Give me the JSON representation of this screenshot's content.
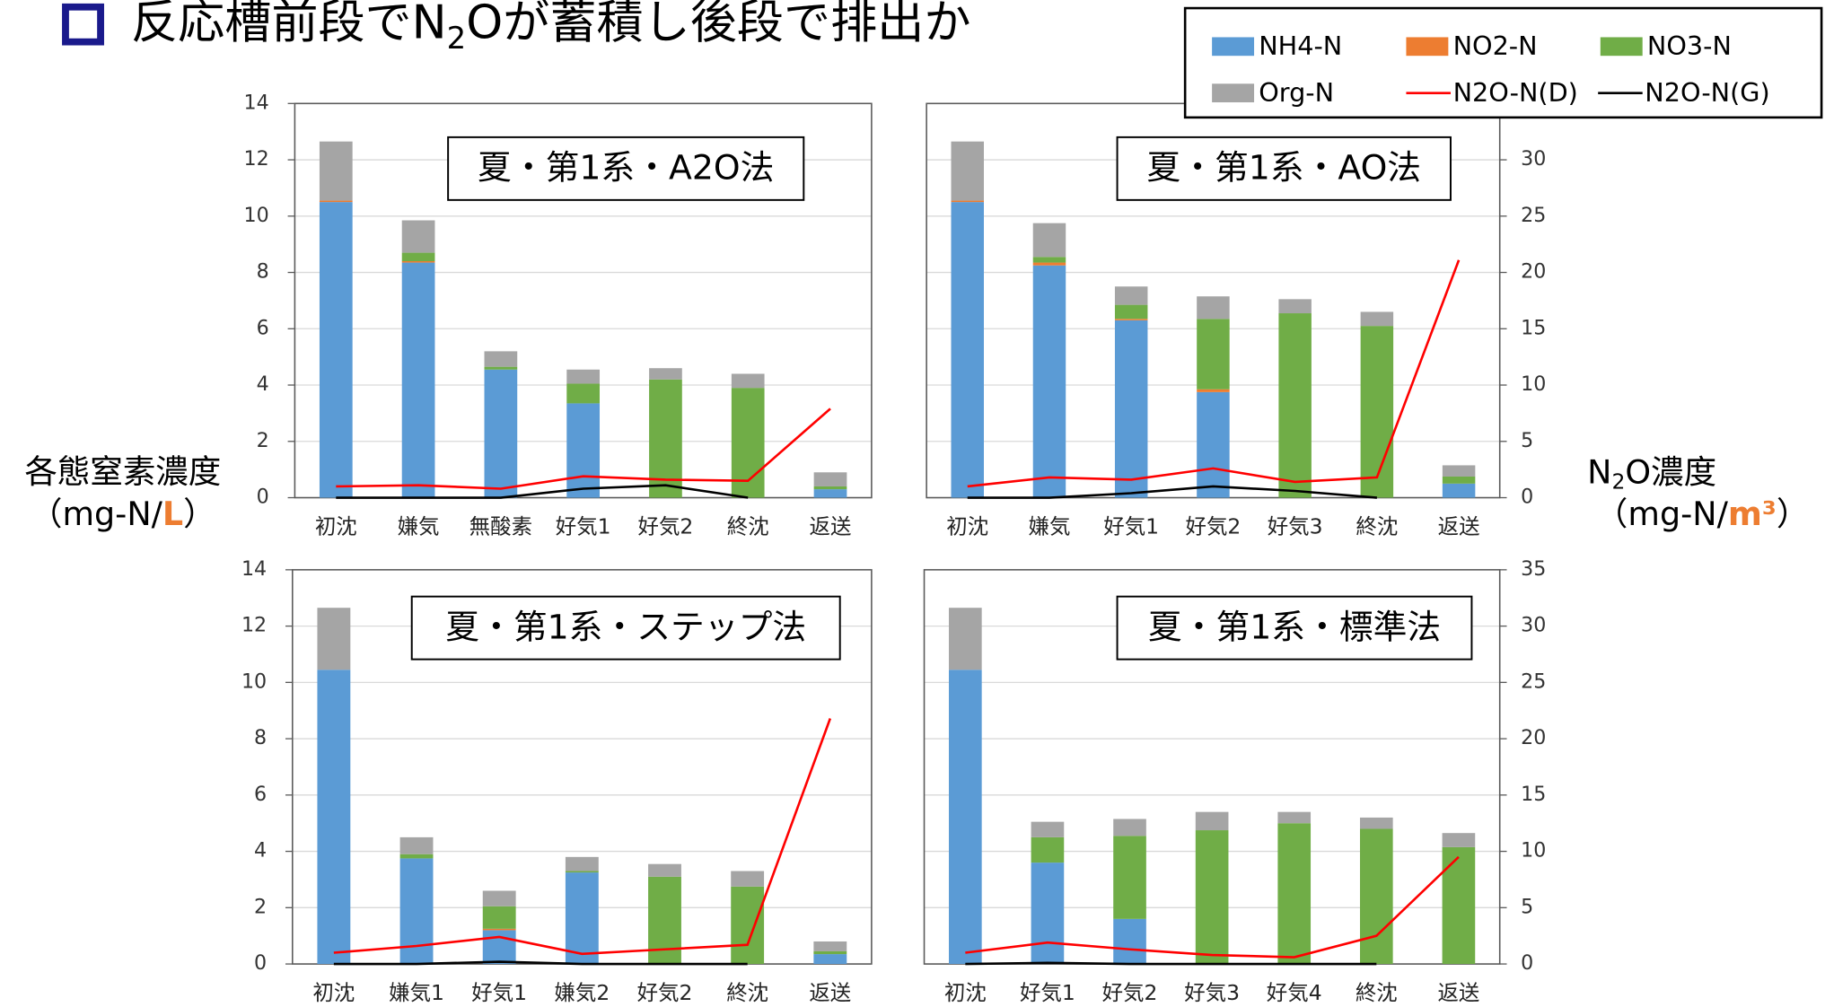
{
  "title": [
    "反応槽前段でN",
    "2",
    "Oが蓄積し後段で排出か"
  ],
  "y_label": [
    "各態窒素濃度",
    "（mg-N/",
    "L",
    "）"
  ],
  "y2_label": [
    "N",
    "2",
    "O濃度",
    "（mg-N/",
    "m³",
    "）"
  ],
  "chart_data": [
    {
      "type": "bar",
      "stacked": true,
      "label": "夏・第1系・A2O法",
      "categories": [
        "初沈",
        "嫌気",
        "無酸素",
        "好気1",
        "好気2",
        "終沈",
        "返送"
      ],
      "series": [
        {
          "name": "NH4-N",
          "type": "bar",
          "color": "#5b9bd5",
          "values": [
            10.5,
            8.35,
            4.55,
            3.35,
            0,
            0,
            0.3
          ]
        },
        {
          "name": "NO2-N",
          "type": "bar",
          "color": "#ed7d31",
          "values": [
            0.05,
            0.05,
            0,
            0,
            0,
            0,
            0
          ]
        },
        {
          "name": "NO3-N",
          "type": "bar",
          "color": "#70ad47",
          "values": [
            0,
            0.3,
            0.1,
            0.7,
            4.2,
            3.9,
            0.1
          ]
        },
        {
          "name": "Org-N",
          "type": "bar",
          "color": "#a5a5a5",
          "values": [
            2.1,
            1.15,
            0.55,
            0.5,
            0.4,
            0.5,
            0.5
          ]
        },
        {
          "name": "N2O-N(D)",
          "type": "line",
          "axis": "y2",
          "color": "#ff0000",
          "values": [
            1.0,
            1.1,
            0.8,
            1.9,
            1.6,
            1.5,
            7.9
          ]
        },
        {
          "name": "N2O-N(G)",
          "type": "line",
          "axis": "y2",
          "color": "#000000",
          "values": [
            0,
            0,
            0,
            0.8,
            1.1,
            0,
            null
          ]
        }
      ],
      "ylim": [
        0,
        14
      ],
      "yticks": [
        0,
        2,
        4,
        6,
        8,
        10,
        12,
        14
      ],
      "y2lim": [
        0,
        35
      ],
      "grid": true
    },
    {
      "type": "bar",
      "stacked": true,
      "label": "夏・第1系・AO法",
      "categories": [
        "初沈",
        "嫌気",
        "好気1",
        "好気2",
        "好気3",
        "終沈",
        "返送"
      ],
      "series": [
        {
          "name": "NH4-N",
          "type": "bar",
          "color": "#5b9bd5",
          "values": [
            10.5,
            8.25,
            6.3,
            3.75,
            0,
            0,
            0.5
          ]
        },
        {
          "name": "NO2-N",
          "type": "bar",
          "color": "#ed7d31",
          "values": [
            0.05,
            0.1,
            0.05,
            0.1,
            0,
            0,
            0
          ]
        },
        {
          "name": "NO3-N",
          "type": "bar",
          "color": "#70ad47",
          "values": [
            0,
            0.2,
            0.5,
            2.5,
            6.55,
            6.1,
            0.25
          ]
        },
        {
          "name": "Org-N",
          "type": "bar",
          "color": "#a5a5a5",
          "values": [
            2.1,
            1.2,
            0.65,
            0.8,
            0.5,
            0.5,
            0.4
          ]
        },
        {
          "name": "N2O-N(D)",
          "type": "line",
          "axis": "y2",
          "color": "#ff0000",
          "values": [
            1.0,
            1.8,
            1.6,
            2.6,
            1.4,
            1.8,
            21.1
          ]
        },
        {
          "name": "N2O-N(G)",
          "type": "line",
          "axis": "y2",
          "color": "#000000",
          "values": [
            0,
            0,
            0.4,
            1.0,
            0.6,
            0,
            null
          ]
        }
      ],
      "ylim": [
        0,
        14
      ],
      "y2lim": [
        0,
        35
      ],
      "y2ticks": [
        0,
        5,
        10,
        15,
        20,
        25,
        30
      ],
      "grid": true
    },
    {
      "type": "bar",
      "stacked": true,
      "label": "夏・第1系・ステップ法",
      "categories": [
        "初沈",
        "嫌気1",
        "好気1",
        "嫌気2",
        "好気2",
        "終沈",
        "返送"
      ],
      "series": [
        {
          "name": "NH4-N",
          "type": "bar",
          "color": "#5b9bd5",
          "values": [
            10.45,
            3.75,
            1.2,
            3.25,
            0,
            0,
            0.35
          ]
        },
        {
          "name": "NO2-N",
          "type": "bar",
          "color": "#ed7d31",
          "values": [
            0,
            0,
            0.05,
            0,
            0,
            0,
            0
          ]
        },
        {
          "name": "NO3-N",
          "type": "bar",
          "color": "#70ad47",
          "values": [
            0,
            0.15,
            0.8,
            0.05,
            3.1,
            2.75,
            0.1
          ]
        },
        {
          "name": "Org-N",
          "type": "bar",
          "color": "#a5a5a5",
          "values": [
            2.2,
            0.6,
            0.55,
            0.5,
            0.45,
            0.55,
            0.35
          ]
        },
        {
          "name": "N2O-N(D)",
          "type": "line",
          "axis": "y2",
          "color": "#ff0000",
          "values": [
            1.0,
            1.6,
            2.4,
            0.9,
            1.3,
            1.7,
            21.8
          ]
        },
        {
          "name": "N2O-N(G)",
          "type": "line",
          "axis": "y2",
          "color": "#000000",
          "values": [
            0,
            0,
            0.2,
            0,
            0,
            0,
            null
          ]
        }
      ],
      "ylim": [
        0,
        14
      ],
      "yticks": [
        0,
        2,
        4,
        6,
        8,
        10,
        12,
        14
      ],
      "y2lim": [
        0,
        35
      ],
      "grid": true
    },
    {
      "type": "bar",
      "stacked": true,
      "label": "夏・第1系・標準法",
      "categories": [
        "初沈",
        "好気1",
        "好気2",
        "好気3",
        "好気4",
        "終沈",
        "返送"
      ],
      "series": [
        {
          "name": "NH4-N",
          "type": "bar",
          "color": "#5b9bd5",
          "values": [
            10.45,
            3.6,
            1.6,
            0,
            0,
            0,
            0
          ]
        },
        {
          "name": "NO2-N",
          "type": "bar",
          "color": "#ed7d31",
          "values": [
            0,
            0,
            0,
            0,
            0,
            0,
            0
          ]
        },
        {
          "name": "NO3-N",
          "type": "bar",
          "color": "#70ad47",
          "values": [
            0,
            0.9,
            2.95,
            4.75,
            5.0,
            4.8,
            4.15
          ]
        },
        {
          "name": "Org-N",
          "type": "bar",
          "color": "#a5a5a5",
          "values": [
            2.2,
            0.55,
            0.6,
            0.65,
            0.4,
            0.4,
            0.5
          ]
        },
        {
          "name": "N2O-N(D)",
          "type": "line",
          "axis": "y2",
          "color": "#ff0000",
          "values": [
            1.0,
            1.9,
            1.3,
            0.8,
            0.6,
            2.5,
            9.5
          ]
        },
        {
          "name": "N2O-N(G)",
          "type": "line",
          "axis": "y2",
          "color": "#000000",
          "values": [
            0,
            0.1,
            0,
            0,
            0,
            0,
            null
          ]
        }
      ],
      "ylim": [
        0,
        14
      ],
      "y2lim": [
        0,
        35
      ],
      "y2ticks": [
        0,
        5,
        10,
        15,
        20,
        25,
        30,
        35
      ],
      "grid": true
    }
  ]
}
